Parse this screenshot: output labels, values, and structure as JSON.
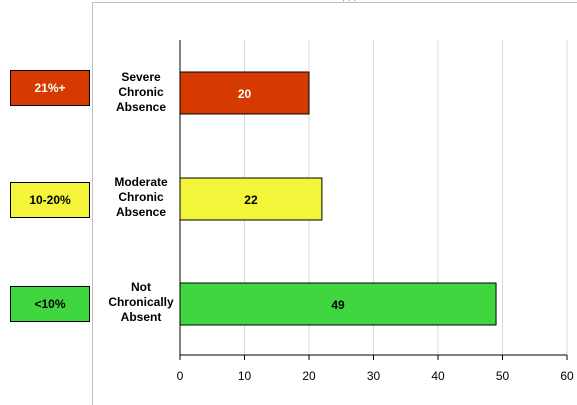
{
  "header_fragment": "… , , ,",
  "badges": [
    {
      "label": "21%+",
      "color": "#d63a00",
      "text_color": "#ffffff"
    },
    {
      "label": "10-20%",
      "color": "#f2f53a",
      "text_color": "#000000"
    },
    {
      "label": "<10%",
      "color": "#3fd63f",
      "text_color": "#000000"
    }
  ],
  "chart_data": {
    "type": "bar",
    "orientation": "horizontal",
    "categories": [
      "Severe\nChronic\nAbsence",
      "Moderate\nChronic\nAbsence",
      "Not\nChronically\nAbsent"
    ],
    "values": [
      20,
      22,
      49
    ],
    "value_labels": [
      "20",
      "22",
      "49"
    ],
    "bar_colors": [
      "#d63a00",
      "#f2f53a",
      "#3fd63f"
    ],
    "value_label_colors": [
      "#ffffff",
      "#000000",
      "#000000"
    ],
    "xlim": [
      0,
      60
    ],
    "x_ticks": [
      0,
      10,
      20,
      30,
      40,
      50,
      60
    ],
    "x_tick_labels": [
      "0",
      "10",
      "20",
      "30",
      "40",
      "50",
      "60"
    ],
    "grid": true,
    "legend": "none"
  }
}
